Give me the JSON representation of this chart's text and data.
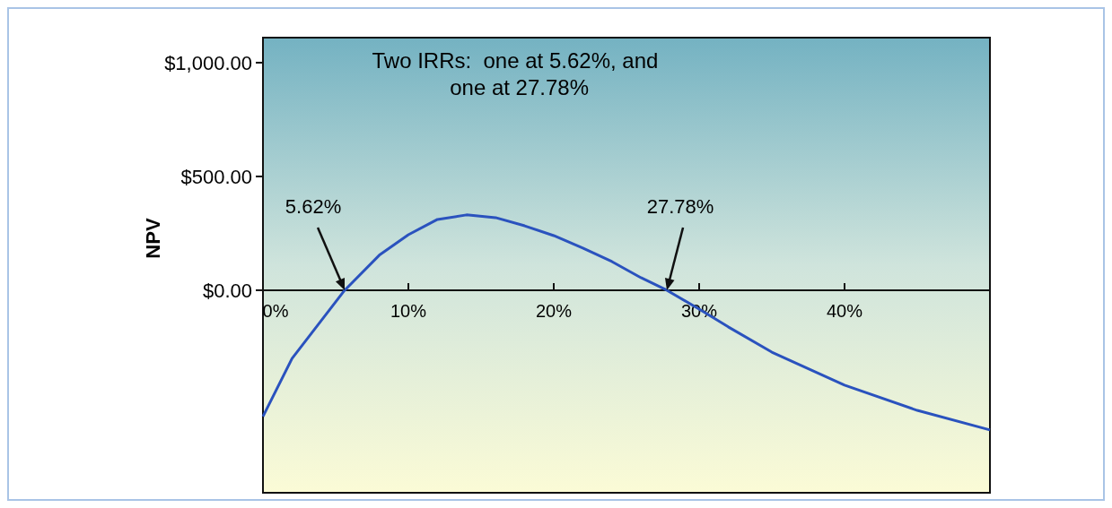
{
  "chart_data": {
    "type": "line",
    "ylabel": "NPV",
    "x": [
      0,
      2,
      5.62,
      8,
      10,
      12,
      14,
      16,
      18,
      20,
      22,
      24,
      26,
      27.78,
      30,
      32,
      35,
      40,
      45,
      50
    ],
    "series": [
      {
        "color": "#2a52be",
        "values": [
          -555,
          -300,
          0,
          154,
          244,
          311,
          331,
          319,
          283,
          240,
          185,
          126,
          55,
          0,
          -83,
          -161,
          -272,
          -417,
          -528,
          -614
        ]
      }
    ],
    "xlim": [
      0,
      50
    ],
    "xticks": [
      {
        "value": 0,
        "label": "0%"
      },
      {
        "value": 10,
        "label": "10%"
      },
      {
        "value": 20,
        "label": "20%"
      },
      {
        "value": 30,
        "label": "30%"
      },
      {
        "value": 40,
        "label": "40%"
      }
    ],
    "ylim": [
      -890,
      1110
    ],
    "yticks": [
      {
        "value": 0,
        "label": "$0.00"
      },
      {
        "value": 500,
        "label": "$500.00"
      },
      {
        "value": 1000,
        "label": "$1,000.00"
      }
    ],
    "annotations": [
      "Two IRRs:  one at 5.62%, and\n             one at 27.78%",
      {
        "text": "5.62%",
        "x": 5.62,
        "y": 0
      },
      {
        "text": "27.78%",
        "x": 27.78,
        "y": 0
      }
    ],
    "grid": false,
    "marker": "none",
    "line_style": "solid"
  }
}
